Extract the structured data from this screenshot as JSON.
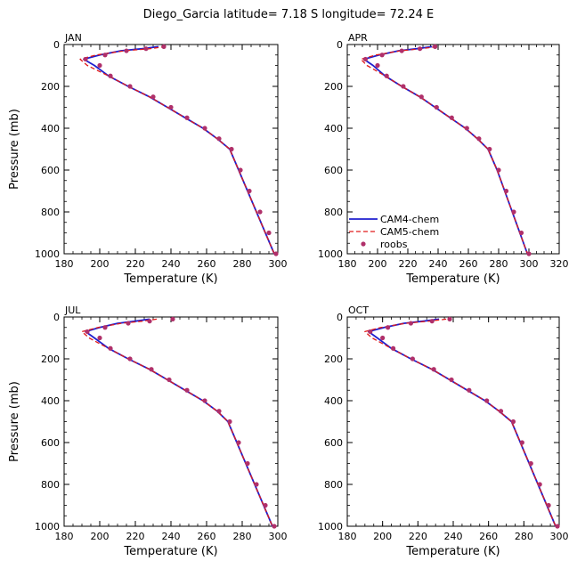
{
  "figure_title": "Diego_Garcia   latitude= 7.18 S longitude= 72.24 E",
  "legend": {
    "placement": "lower-left of APR panel",
    "entries": [
      {
        "label": "CAM4-chem",
        "style": "solid line",
        "color": "#1f1fcf"
      },
      {
        "label": "CAM5-chem",
        "style": "dashed line",
        "color": "#e01a1a"
      },
      {
        "label": "roobs",
        "style": "marker",
        "color": "#b0306a"
      }
    ]
  },
  "colors": {
    "cam4": "#1f1fcf",
    "cam5": "#e01a1a",
    "roobs": "#b0306a"
  },
  "chart_data": [
    {
      "type": "line",
      "panel": "JAN",
      "xlabel": "Temperature (K)",
      "ylabel": "Pressure (mb)",
      "xlim": [
        180,
        300
      ],
      "ylim": [
        1000,
        0
      ],
      "xticks": [
        180,
        200,
        220,
        240,
        260,
        280,
        300
      ],
      "yticks": [
        0,
        200,
        400,
        600,
        800,
        1000
      ],
      "series": [
        {
          "name": "CAM4-chem",
          "x": [
            233,
            224,
            212,
            200,
            191,
            197,
            205,
            216,
            228,
            238,
            248,
            258,
            266,
            273,
            278,
            283,
            288,
            293,
            298
          ],
          "y": [
            10,
            20,
            30,
            50,
            70,
            100,
            150,
            200,
            250,
            300,
            350,
            400,
            450,
            500,
            600,
            700,
            800,
            900,
            1000
          ]
        },
        {
          "name": "CAM5-chem",
          "x": [
            237,
            228,
            214,
            198,
            189,
            193,
            205,
            216,
            228,
            238,
            248,
            258,
            266,
            273,
            278,
            283,
            288,
            293,
            298
          ],
          "y": [
            10,
            20,
            30,
            50,
            70,
            100,
            150,
            200,
            250,
            300,
            350,
            400,
            450,
            500,
            600,
            700,
            800,
            900,
            1000
          ]
        },
        {
          "name": "roobs",
          "x": [
            236,
            226,
            215,
            203,
            192,
            200,
            206,
            217,
            230,
            240,
            249,
            259,
            267,
            274,
            279,
            284,
            290,
            295,
            299
          ],
          "y": [
            10,
            20,
            30,
            50,
            70,
            100,
            150,
            200,
            250,
            300,
            350,
            400,
            450,
            500,
            600,
            700,
            800,
            900,
            1000
          ]
        }
      ]
    },
    {
      "type": "line",
      "panel": "APR",
      "xlabel": "Temperature (K)",
      "ylabel": "",
      "xlim": [
        180,
        320
      ],
      "ylim": [
        1000,
        0
      ],
      "xticks": [
        180,
        200,
        220,
        240,
        260,
        280,
        300,
        320
      ],
      "yticks": [
        0,
        200,
        400,
        600,
        800,
        1000
      ],
      "series": [
        {
          "name": "CAM4-chem",
          "x": [
            236,
            226,
            214,
            201,
            191,
            197,
            205,
            216,
            228,
            238,
            248,
            258,
            266,
            273,
            279,
            284,
            289,
            294,
            299
          ],
          "y": [
            10,
            20,
            30,
            50,
            70,
            100,
            150,
            200,
            250,
            300,
            350,
            400,
            450,
            500,
            600,
            700,
            800,
            900,
            1000
          ]
        },
        {
          "name": "CAM5-chem",
          "x": [
            239,
            229,
            215,
            199,
            189,
            193,
            205,
            216,
            228,
            238,
            248,
            258,
            266,
            273,
            279,
            284,
            289,
            294,
            299
          ],
          "y": [
            10,
            20,
            30,
            50,
            70,
            100,
            150,
            200,
            250,
            300,
            350,
            400,
            450,
            500,
            600,
            700,
            800,
            900,
            1000
          ]
        },
        {
          "name": "roobs",
          "x": [
            238,
            228,
            216,
            203,
            192,
            200,
            206,
            217,
            229,
            239,
            249,
            259,
            267,
            274,
            280,
            285,
            290,
            295,
            300
          ],
          "y": [
            10,
            20,
            30,
            50,
            70,
            100,
            150,
            200,
            250,
            300,
            350,
            400,
            450,
            500,
            600,
            700,
            800,
            900,
            1000
          ]
        }
      ]
    },
    {
      "type": "line",
      "panel": "JUL",
      "xlabel": "Temperature (K)",
      "ylabel": "Pressure (mb)",
      "xlim": [
        180,
        300
      ],
      "ylim": [
        1000,
        0
      ],
      "xticks": [
        180,
        200,
        220,
        240,
        260,
        280,
        300
      ],
      "yticks": [
        0,
        200,
        400,
        600,
        800,
        1000
      ],
      "series": [
        {
          "name": "CAM4-chem",
          "x": [
            228,
            220,
            210,
            200,
            192,
            197,
            205,
            216,
            228,
            238,
            248,
            258,
            266,
            272,
            277,
            282,
            287,
            292,
            297
          ],
          "y": [
            10,
            20,
            30,
            50,
            70,
            100,
            150,
            200,
            250,
            300,
            350,
            400,
            450,
            500,
            600,
            700,
            800,
            900,
            1000
          ]
        },
        {
          "name": "CAM5-chem",
          "x": [
            232,
            224,
            212,
            199,
            190,
            194,
            205,
            216,
            228,
            238,
            248,
            258,
            266,
            272,
            277,
            282,
            287,
            292,
            297
          ],
          "y": [
            10,
            20,
            30,
            50,
            70,
            100,
            150,
            200,
            250,
            300,
            350,
            400,
            450,
            500,
            600,
            700,
            800,
            900,
            1000
          ]
        },
        {
          "name": "roobs",
          "x": [
            241,
            228,
            216,
            203,
            193,
            200,
            206,
            217,
            229,
            239,
            249,
            259,
            267,
            273,
            278,
            283,
            288,
            293,
            298
          ],
          "y": [
            10,
            20,
            30,
            50,
            70,
            100,
            150,
            200,
            250,
            300,
            350,
            400,
            450,
            500,
            600,
            700,
            800,
            900,
            1000
          ]
        }
      ]
    },
    {
      "type": "line",
      "panel": "OCT",
      "xlabel": "Temperature (K)",
      "ylabel": "",
      "xlim": [
        180,
        300
      ],
      "ylim": [
        1000,
        0
      ],
      "xticks": [
        180,
        200,
        220,
        240,
        260,
        280,
        300
      ],
      "yticks": [
        0,
        200,
        400,
        600,
        800,
        1000
      ],
      "series": [
        {
          "name": "CAM4-chem",
          "x": [
            232,
            223,
            212,
            201,
            192,
            197,
            205,
            216,
            228,
            238,
            248,
            258,
            266,
            273,
            278,
            283,
            288,
            293,
            298
          ],
          "y": [
            10,
            20,
            30,
            50,
            70,
            100,
            150,
            200,
            250,
            300,
            350,
            400,
            450,
            500,
            600,
            700,
            800,
            900,
            1000
          ]
        },
        {
          "name": "CAM5-chem",
          "x": [
            236,
            226,
            213,
            199,
            190,
            194,
            205,
            216,
            228,
            238,
            248,
            258,
            266,
            273,
            278,
            283,
            288,
            293,
            298
          ],
          "y": [
            10,
            20,
            30,
            50,
            70,
            100,
            150,
            200,
            250,
            300,
            350,
            400,
            450,
            500,
            600,
            700,
            800,
            900,
            1000
          ]
        },
        {
          "name": "roobs",
          "x": [
            238,
            228,
            216,
            203,
            193,
            200,
            206,
            217,
            229,
            239,
            249,
            259,
            267,
            274,
            279,
            284,
            289,
            294,
            299
          ],
          "y": [
            10,
            20,
            30,
            50,
            70,
            100,
            150,
            200,
            250,
            300,
            350,
            400,
            450,
            500,
            600,
            700,
            800,
            900,
            1000
          ]
        }
      ]
    }
  ]
}
